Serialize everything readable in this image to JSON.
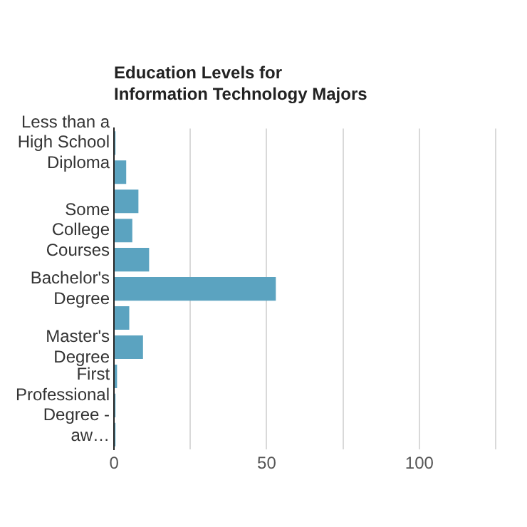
{
  "chart_data": {
    "type": "bar",
    "orientation": "horizontal",
    "title": "Education Levels for Information Technology Majors",
    "categories": [
      "Less than a High School Diploma",
      null,
      null,
      "Some College Courses",
      null,
      "Bachelor's Degree",
      null,
      "Master's Degree",
      null,
      "First Professional Degree - aw…",
      null
    ],
    "values": [
      0.5,
      4,
      8,
      6,
      11.5,
      53,
      5,
      9.5,
      1,
      0.5,
      0.5
    ],
    "color": "#5ba3c0",
    "xlim": [
      0,
      125
    ],
    "xticks": [
      0,
      {
        "value": 25,
        "label": null
      },
      50,
      {
        "value": 75,
        "label": null
      },
      100,
      {
        "value": 125,
        "label": null
      }
    ],
    "grid": "x",
    "legend": false
  }
}
